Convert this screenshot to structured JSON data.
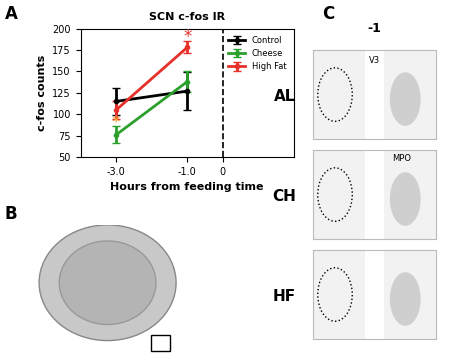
{
  "chart_data": {
    "type": "line",
    "title": "SCN c-fos IR",
    "x_label": "Hours from feeding time",
    "y_label": "c-fos counts",
    "x": [
      -3.0,
      -1.0
    ],
    "series": [
      {
        "name": "Control",
        "color": "#000000",
        "values": [
          115,
          127
        ],
        "errors": [
          16,
          22
        ]
      },
      {
        "name": "Cheese",
        "color": "#2ca02c",
        "values": [
          76,
          138
        ],
        "errors": [
          10,
          12
        ]
      },
      {
        "name": "High Fat",
        "color": "#e8302a",
        "values": [
          105,
          178
        ],
        "errors": [
          10,
          7
        ]
      }
    ],
    "xlim": [
      -4,
      2
    ],
    "xticks": [
      {
        "value": -3,
        "label": "-3.0"
      },
      {
        "value": -1,
        "label": "-1.0"
      },
      0
    ],
    "ylim": [
      50,
      200
    ],
    "yticks": [
      50,
      75,
      100,
      125,
      150,
      175,
      200
    ],
    "reference_line": 0,
    "annotations": [
      {
        "text": "*",
        "x": -1,
        "y": 190,
        "color": "#e8302a"
      },
      {
        "text": "*",
        "x": -3,
        "y": 90,
        "color": "#f0a030"
      }
    ],
    "legend": "upper right",
    "marker": "o",
    "grid": false
  },
  "panels": [
    "A",
    "B",
    "C"
  ],
  "panel_c": {
    "column": "-1",
    "rows": [
      "AL",
      "CH",
      "HF"
    ],
    "labels": [
      "V3",
      "MPO"
    ]
  }
}
